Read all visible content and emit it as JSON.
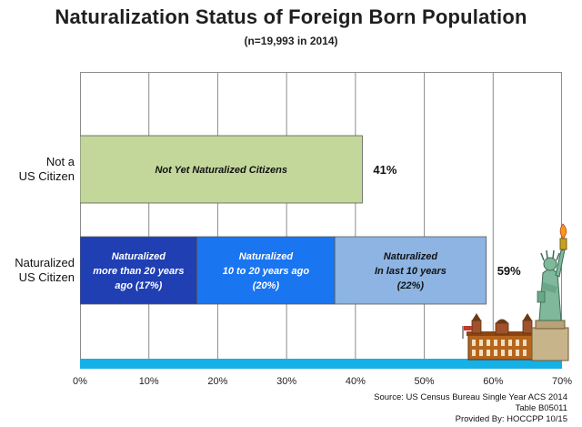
{
  "chart_data": {
    "type": "bar",
    "orientation": "horizontal",
    "stacked": true,
    "title": "Naturalization Status of Foreign Born Population",
    "subtitle": "(n=19,993 in 2014)",
    "xlim": [
      0,
      70
    ],
    "x_ticks": [
      "0%",
      "10%",
      "20%",
      "30%",
      "40%",
      "50%",
      "60%",
      "70%"
    ],
    "grid": "vertical",
    "categories": [
      {
        "label": [
          "Not a",
          "US Citizen"
        ],
        "total_label": "41%",
        "segments": [
          {
            "value": 41,
            "label": [
              "Not Yet Naturalized Citizens"
            ],
            "color": "#c4d79b",
            "text_color": "#111111"
          }
        ]
      },
      {
        "label": [
          "Naturalized",
          "US Citizen"
        ],
        "total_label": "59%",
        "segments": [
          {
            "value": 17,
            "label": [
              "Naturalized",
              "more than 20 years",
              "ago (17%)"
            ],
            "color": "#1f3fb3",
            "text_color": "#ffffff"
          },
          {
            "value": 20,
            "label": [
              "Naturalized",
              "10 to 20 years ago",
              "(20%)"
            ],
            "color": "#1a75f0",
            "text_color": "#ffffff"
          },
          {
            "value": 22,
            "label": [
              "Naturalized",
              "In last 10 years",
              "(22%)"
            ],
            "color": "#8db4e2",
            "text_color": "#111111"
          }
        ]
      }
    ]
  },
  "source": {
    "line1": "Source: US Census Bureau Single Year ACS 2014",
    "line2": "Table B05011",
    "line3": "Provided By: HOCCPP 10/15"
  }
}
